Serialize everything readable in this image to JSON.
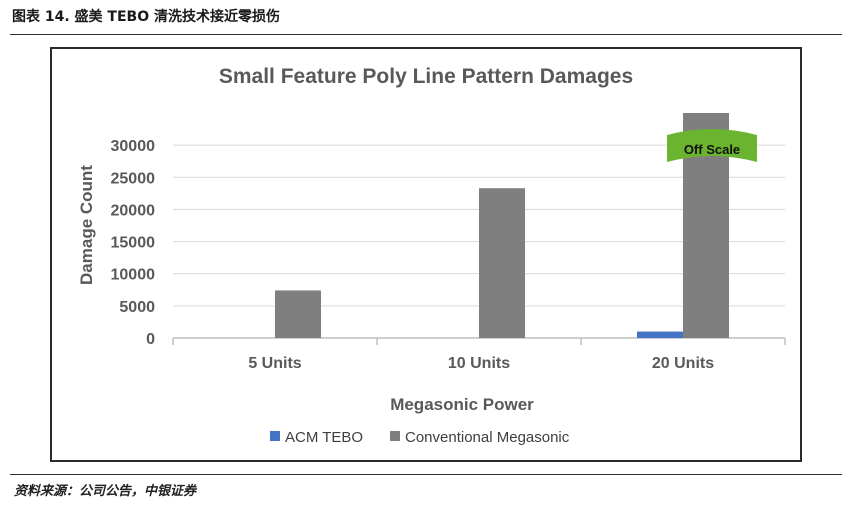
{
  "figure": {
    "caption": "图表 14. 盛美 TEBO 清洗技术接近零损伤",
    "source": "资料来源：公司公告，中银证券"
  },
  "colors": {
    "acm_tebo": "#4472C4",
    "conventional": "#7f7f7f",
    "off_scale_flag": "#6ab42f",
    "gridline": "#d9d9d9"
  },
  "chart_data": {
    "type": "bar",
    "title": "Small Feature Poly Line Pattern Damages",
    "xlabel": "Megasonic Power",
    "ylabel": "Damage Count",
    "categories": [
      "5 Units",
      "10 Units",
      "20 Units"
    ],
    "series": [
      {
        "name": "ACM TEBO",
        "values": [
          0,
          0,
          1000
        ]
      },
      {
        "name": "Conventional Megasonic",
        "values": [
          7400,
          23300,
          35000
        ]
      }
    ],
    "ylim": [
      0,
      35000
    ],
    "yticks": [
      "0",
      "5000",
      "10000",
      "15000",
      "20000",
      "25000",
      "30000"
    ],
    "grid": true,
    "legend_position": "bottom",
    "annotation": "Off Scale"
  }
}
